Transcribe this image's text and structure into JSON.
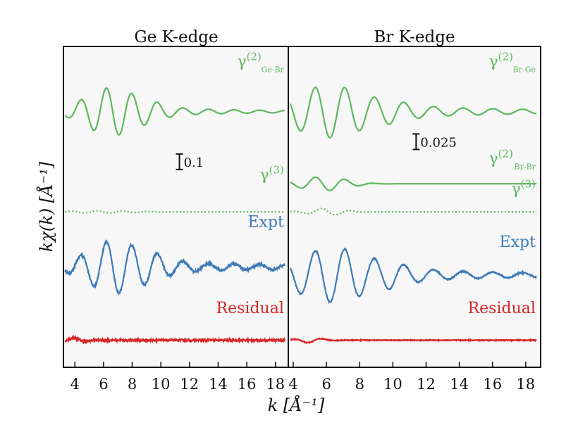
{
  "figure": {
    "ylabel": "kχ(k) [Å⁻¹]",
    "xlabel": "k [Å⁻¹]"
  },
  "colors": {
    "green": "#5cb85c",
    "blue": "#3d7ab8",
    "red": "#d62728",
    "axis": "#111111",
    "panel_bg": "#f7f7f7"
  },
  "chart_data": [
    {
      "type": "line",
      "title": "Ge K-edge",
      "xlim": [
        3.2,
        18.9
      ],
      "xticks": [
        4,
        6,
        8,
        10,
        12,
        14,
        16,
        18
      ],
      "y_ticks_shown": false,
      "scale_bar": {
        "value": 0.1,
        "label": "0.1",
        "k": 11.3
      },
      "series": [
        {
          "name": "γ(2) Ge-Br",
          "label_base": "γ",
          "label_sup": "(2)",
          "label_sub": "Ge-Br",
          "color": "green",
          "style": "solid",
          "baseline": 2.55,
          "label_k": 18.6,
          "label_offset": 0.45,
          "waves": [
            {
              "amp": 0.24,
              "freq": 3.52,
              "phase": 4.9,
              "center": 6.6,
              "width": 2.6,
              "decay": 0.0
            },
            {
              "amp": 0.04,
              "freq": 3.52,
              "phase": 4.9,
              "center": 0,
              "width": 0,
              "decay": 0.14,
              "start": 9.5
            }
          ]
        },
        {
          "name": "γ(3)",
          "label_base": "γ",
          "label_sup": "(3)",
          "label_sub": "",
          "color": "green",
          "style": "dotted",
          "baseline": 1.55,
          "label_k": 18.6,
          "label_offset": 0.32,
          "waves": [
            {
              "amp": 0.012,
              "freq": 3.5,
              "phase": 1.0,
              "center": 6.0,
              "width": 3.0,
              "decay": 0.0
            }
          ]
        },
        {
          "name": "Expt",
          "label_base": "Expt",
          "label_sup": "",
          "label_sub": "",
          "color": "blue",
          "style": "solid",
          "baseline": 1.0,
          "label_k": 18.6,
          "label_offset": 0.4,
          "noise": 0.012,
          "waves": [
            {
              "amp": 0.26,
              "freq": 3.52,
              "phase": 4.9,
              "center": 6.8,
              "width": 2.7,
              "decay": 0.0
            },
            {
              "amp": 0.06,
              "freq": 3.52,
              "phase": 4.9,
              "center": 0,
              "width": 0,
              "decay": 0.12,
              "start": 9.5
            }
          ]
        },
        {
          "name": "Residual",
          "label_base": "Residual",
          "label_sup": "",
          "label_sub": "",
          "color": "red",
          "style": "solid",
          "baseline": 0.27,
          "label_k": 18.6,
          "label_offset": 0.27,
          "noise": 0.01,
          "waves": [
            {
              "amp": 0.02,
              "freq": 3.5,
              "phase": 0.3,
              "center": 4.0,
              "width": 1.0,
              "decay": 0.0
            }
          ]
        }
      ]
    },
    {
      "type": "line",
      "title": "Br K-edge",
      "xlim": [
        3.7,
        18.9
      ],
      "xticks": [
        4,
        6,
        8,
        10,
        12,
        14,
        16,
        18
      ],
      "y_ticks_shown": false,
      "scale_bar": {
        "value": 0.025,
        "label": "0.025",
        "k": 11.4
      },
      "series": [
        {
          "name": "γ(2) Br-Ge",
          "label_base": "γ",
          "label_sup": "(2)",
          "label_sub": "Br-Ge",
          "color": "green",
          "style": "solid",
          "baseline": 2.55,
          "label_k": 18.6,
          "label_offset": 0.45,
          "waves": [
            {
              "amp": 0.26,
              "freq": 3.52,
              "phase": 1.7,
              "center": 6.2,
              "width": 3.2,
              "decay": 0.0
            },
            {
              "amp": 0.06,
              "freq": 3.52,
              "phase": 1.7,
              "center": 0,
              "width": 0,
              "decay": 0.12,
              "start": 10.0
            }
          ]
        },
        {
          "name": "γ(2) Br-Br",
          "label_base": "γ",
          "label_sup": "(2)",
          "label_sub": "Br-Br",
          "color": "green",
          "style": "solid",
          "baseline": 1.83,
          "label_k": 18.6,
          "label_offset": 0.2,
          "waves": [
            {
              "amp": 0.07,
              "freq": 3.52,
              "phase": 1.7,
              "center": 5.8,
              "width": 1.9,
              "decay": 0.0
            }
          ]
        },
        {
          "name": "γ(3)",
          "label_base": "γ",
          "label_sup": "(3)",
          "label_sub": "",
          "color": "green",
          "style": "dotted",
          "baseline": 1.55,
          "label_k": 18.6,
          "label_offset": 0.18,
          "waves": [
            {
              "amp": 0.035,
              "freq": 3.52,
              "phase": 0.4,
              "center": 6.0,
              "width": 1.4,
              "decay": 0.0
            }
          ]
        },
        {
          "name": "Expt",
          "label_base": "Expt",
          "label_sup": "",
          "label_sub": "",
          "color": "blue",
          "style": "solid",
          "baseline": 0.92,
          "label_k": 18.6,
          "label_offset": 0.28,
          "noise": 0.006,
          "waves": [
            {
              "amp": 0.27,
              "freq": 3.52,
              "phase": 1.7,
              "center": 6.4,
              "width": 3.2,
              "decay": 0.0
            },
            {
              "amp": 0.06,
              "freq": 3.52,
              "phase": 1.7,
              "center": 0,
              "width": 0,
              "decay": 0.12,
              "start": 10.0
            }
          ]
        },
        {
          "name": "Residual",
          "label_base": "Residual",
          "label_sup": "",
          "label_sub": "",
          "color": "red",
          "style": "solid",
          "baseline": 0.27,
          "label_k": 18.6,
          "label_offset": 0.27,
          "noise": 0.004,
          "waves": [
            {
              "amp": 0.025,
              "freq": 3.5,
              "phase": 0.3,
              "center": 5.0,
              "width": 1.0,
              "decay": 0.0
            }
          ]
        }
      ]
    }
  ]
}
